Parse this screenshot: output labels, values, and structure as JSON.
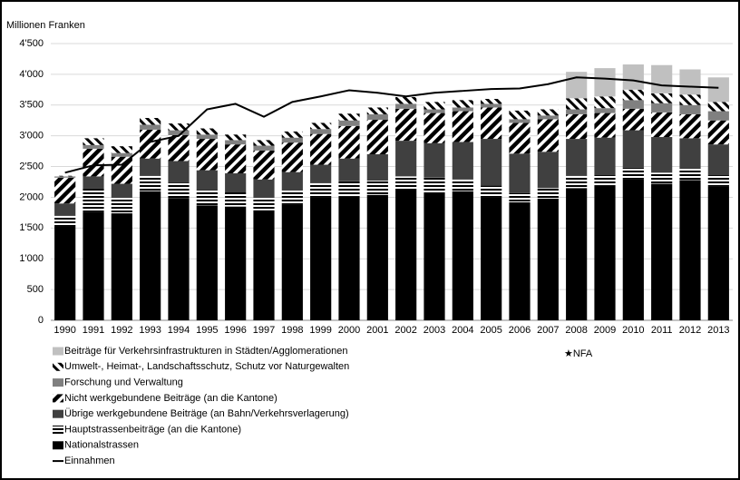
{
  "chart_data": {
    "type": "bar",
    "stacked": true,
    "title": "Millionen Franken",
    "annotation": "★NFA",
    "categories": [
      "1990",
      "1991",
      "1992",
      "1993",
      "1994",
      "1995",
      "1996",
      "1997",
      "1998",
      "1999",
      "2000",
      "2001",
      "2002",
      "2003",
      "2004",
      "2005",
      "2006",
      "2007",
      "2008",
      "2009",
      "2010",
      "2011",
      "2012",
      "2013"
    ],
    "series": [
      {
        "name": "Nationalstrassen",
        "color": "#000000",
        "values": [
          1520,
          1760,
          1740,
          2100,
          1990,
          1870,
          1850,
          1790,
          1880,
          2000,
          2020,
          2040,
          2110,
          2080,
          2100,
          2000,
          1920,
          1980,
          2150,
          2190,
          2300,
          2220,
          2280,
          2170
        ]
      },
      {
        "name": "Hauptstrassenbeiträge (an die Kantone)",
        "color": "#000000",
        "pattern": "horizontal",
        "values": [
          180,
          380,
          250,
          250,
          250,
          250,
          230,
          200,
          230,
          230,
          240,
          230,
          230,
          240,
          190,
          190,
          150,
          170,
          200,
          170,
          180,
          180,
          190,
          190
        ]
      },
      {
        "name": "Übrige werkgebundene Beiträge (an Bahn/Verkehrsverlagerung)",
        "color": "#404040",
        "values": [
          200,
          200,
          230,
          280,
          350,
          320,
          310,
          300,
          300,
          300,
          370,
          430,
          580,
          560,
          610,
          760,
          640,
          590,
          600,
          610,
          610,
          580,
          490,
          500
        ]
      },
      {
        "name": "Nicht werkgebundene Beiträge (an die Kantone)",
        "color": "#000000",
        "pattern": "diagonal-up",
        "values": [
          420,
          450,
          440,
          470,
          420,
          510,
          470,
          470,
          480,
          500,
          530,
          560,
          520,
          490,
          500,
          510,
          500,
          530,
          400,
          400,
          350,
          400,
          390,
          390
        ]
      },
      {
        "name": "Forschung und Verwaltung",
        "color": "#808080",
        "values": [
          20,
          60,
          60,
          80,
          80,
          70,
          70,
          80,
          80,
          80,
          90,
          90,
          80,
          60,
          60,
          60,
          60,
          60,
          80,
          80,
          140,
          150,
          150,
          150
        ]
      },
      {
        "name": "Umwelt-, Heimat-, Landschaftsschutz, Schutz vor Naturgewalten",
        "color": "#000000",
        "pattern": "diagonal-down",
        "values": [
          10,
          110,
          110,
          110,
          110,
          100,
          90,
          90,
          100,
          100,
          110,
          110,
          110,
          120,
          120,
          80,
          140,
          100,
          180,
          190,
          170,
          160,
          170,
          150
        ]
      },
      {
        "name": "Beiträge für Verkehrsinfrastrukturen in Städten/Agglomerationen",
        "color": "#c0c0c0",
        "values": [
          0,
          0,
          0,
          0,
          0,
          0,
          0,
          0,
          0,
          0,
          0,
          0,
          0,
          0,
          0,
          0,
          0,
          0,
          430,
          460,
          410,
          460,
          410,
          400
        ]
      },
      {
        "name": "Einnahmen",
        "type": "line",
        "color": "#000000",
        "values": [
          2400,
          2520,
          2530,
          2900,
          3000,
          3430,
          3520,
          3310,
          3550,
          3640,
          3740,
          3700,
          3640,
          3700,
          3730,
          3760,
          3770,
          3840,
          3950,
          3930,
          3900,
          3820,
          3800,
          3780
        ]
      }
    ],
    "ylim": [
      0,
      4500
    ],
    "yticks": [
      0,
      500,
      {
        "value": 1000,
        "label": "1'000"
      },
      {
        "value": 1500,
        "label": "1'500"
      },
      {
        "value": 2000,
        "label": "2'000"
      },
      {
        "value": 2500,
        "label": "2'500"
      },
      {
        "value": 3000,
        "label": "3'000"
      },
      {
        "value": 3500,
        "label": "3'500"
      },
      {
        "value": 4000,
        "label": "4'000"
      },
      {
        "value": 4500,
        "label": "4'500"
      }
    ],
    "grid": true
  }
}
